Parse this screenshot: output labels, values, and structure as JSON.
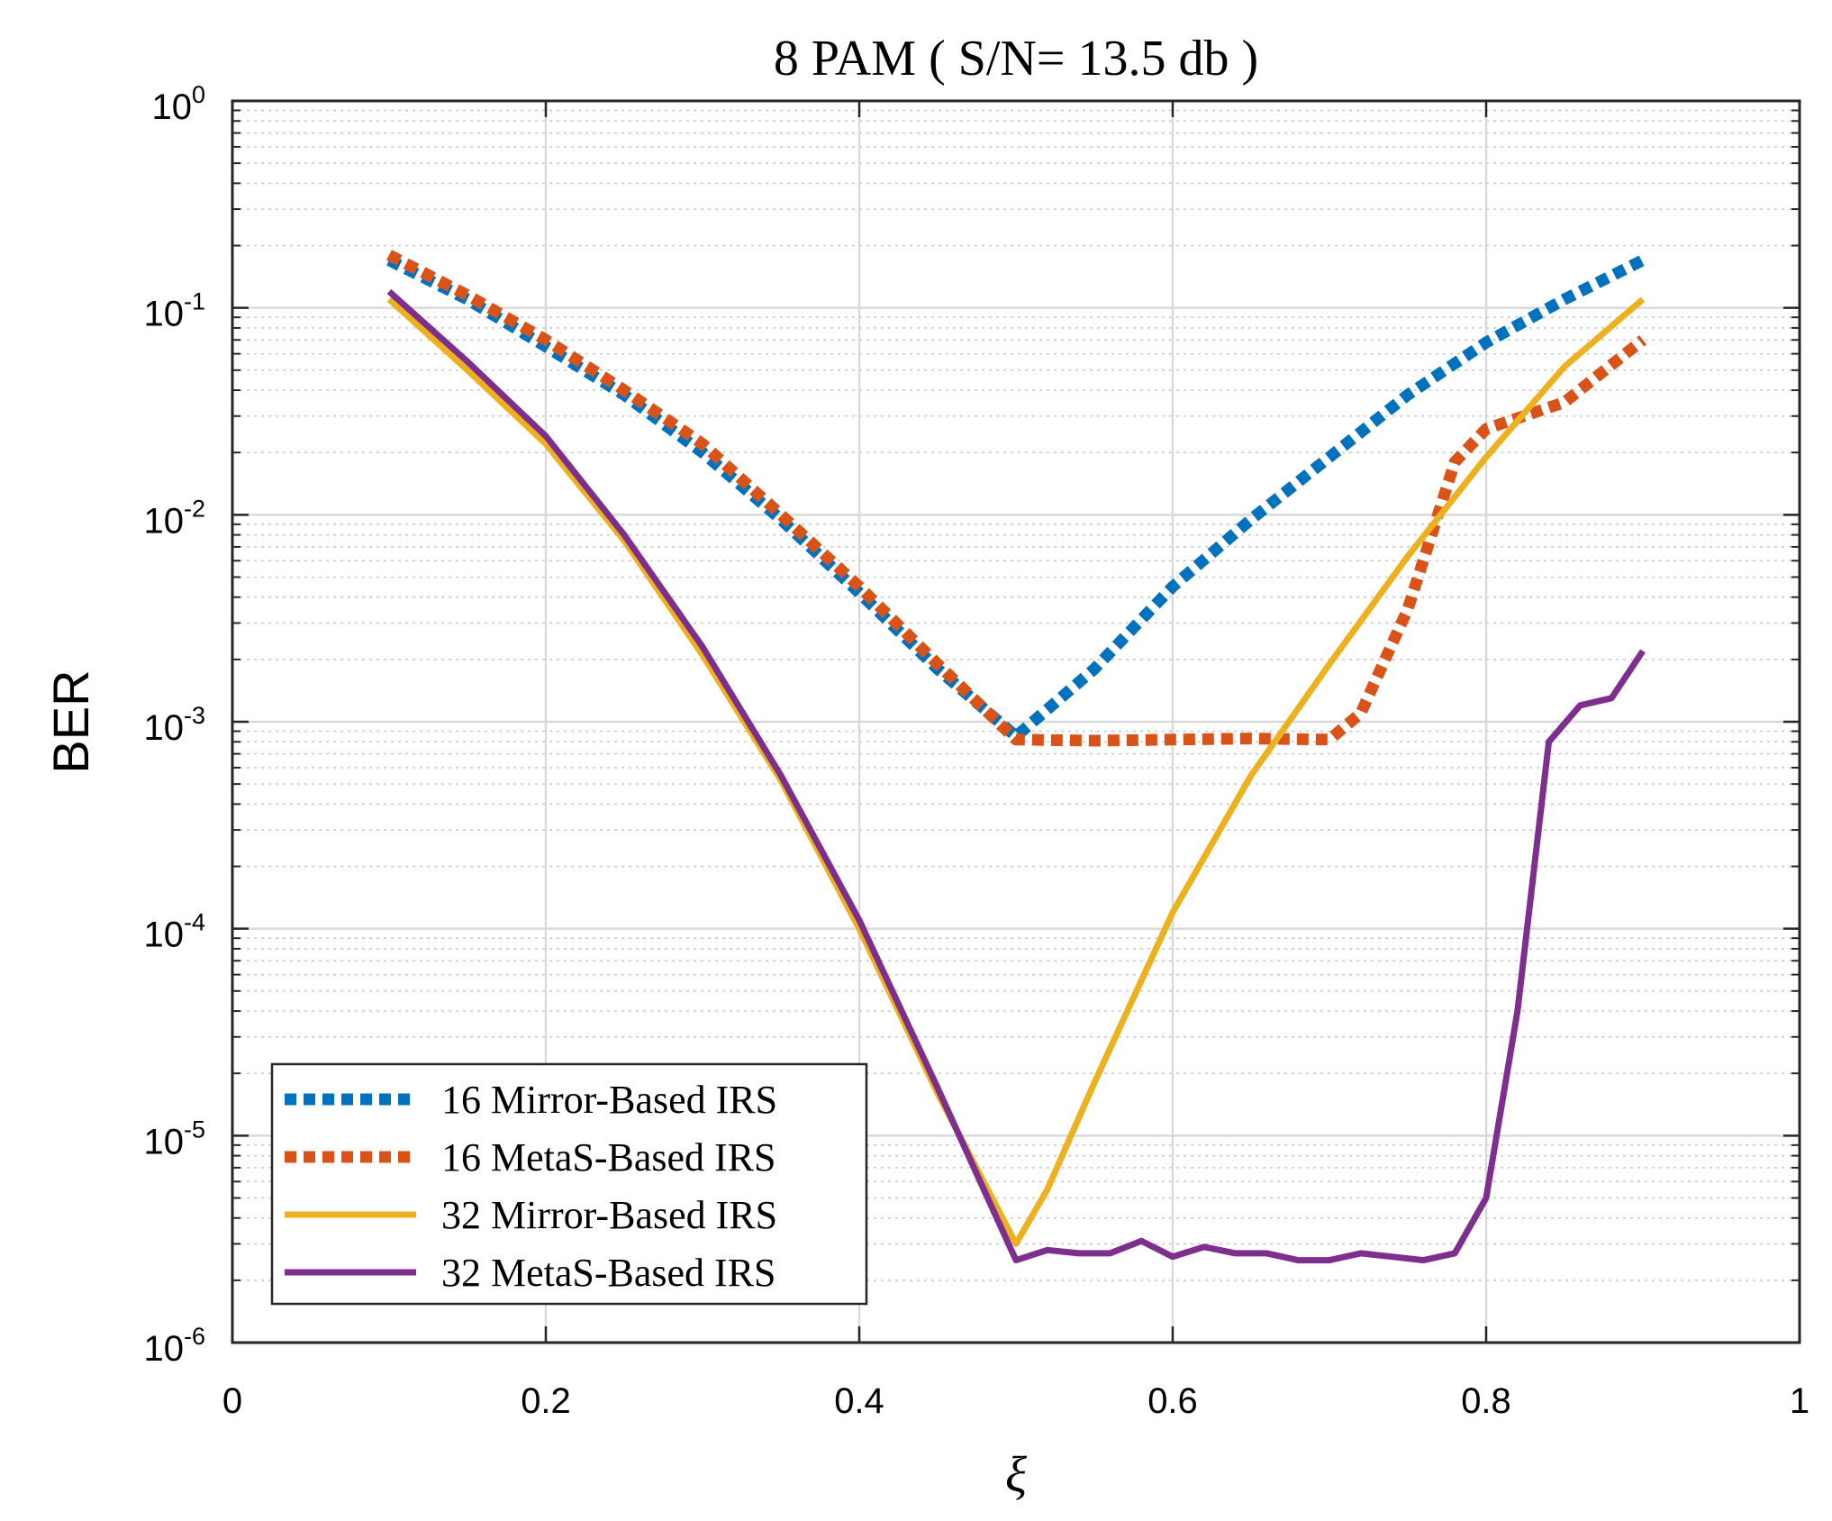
{
  "chart_data": {
    "type": "line",
    "title": "8 PAM  ( S/N= 13.5 db )",
    "xlabel": "ξ",
    "ylabel": "BER",
    "xlim": [
      0,
      1
    ],
    "ylim": [
      1e-06,
      1
    ],
    "yscale": "log",
    "grid": true,
    "legend_position": "bottom-left",
    "x_ticks": [
      "0",
      "0.2",
      "0.4",
      "0.6",
      "0.8",
      "1"
    ],
    "y_ticks": [
      {
        "base": "10",
        "exp": "-6"
      },
      {
        "base": "10",
        "exp": "-5"
      },
      {
        "base": "10",
        "exp": "-4"
      },
      {
        "base": "10",
        "exp": "-3"
      },
      {
        "base": "10",
        "exp": "-2"
      },
      {
        "base": "10",
        "exp": "-1"
      },
      {
        "base": "10",
        "exp": "0"
      }
    ],
    "series": [
      {
        "name": "16 Mirror-Based IRS",
        "color": "#0072BD",
        "style": "dotted",
        "x": [
          0.1,
          0.15,
          0.2,
          0.25,
          0.3,
          0.35,
          0.4,
          0.45,
          0.5,
          0.55,
          0.6,
          0.65,
          0.7,
          0.75,
          0.8,
          0.85,
          0.9
        ],
        "y": [
          0.17,
          0.11,
          0.065,
          0.038,
          0.02,
          0.0095,
          0.0042,
          0.0018,
          0.00085,
          0.0018,
          0.0045,
          0.0095,
          0.019,
          0.038,
          0.068,
          0.11,
          0.17
        ]
      },
      {
        "name": "16 MetaS-Based IRS",
        "color": "#D95319",
        "style": "dotted",
        "x": [
          0.1,
          0.15,
          0.2,
          0.25,
          0.3,
          0.35,
          0.4,
          0.45,
          0.5,
          0.55,
          0.6,
          0.65,
          0.7,
          0.72,
          0.75,
          0.78,
          0.8,
          0.85,
          0.9
        ],
        "y": [
          0.18,
          0.115,
          0.07,
          0.04,
          0.022,
          0.01,
          0.0045,
          0.0019,
          0.00082,
          0.00081,
          0.00082,
          0.00083,
          0.00082,
          0.0011,
          0.0035,
          0.018,
          0.026,
          0.035,
          0.07
        ]
      },
      {
        "name": "32 Mirror-Based IRS",
        "color": "#EDB120",
        "style": "solid",
        "x": [
          0.1,
          0.15,
          0.2,
          0.25,
          0.3,
          0.35,
          0.4,
          0.45,
          0.5,
          0.52,
          0.55,
          0.6,
          0.65,
          0.7,
          0.75,
          0.8,
          0.85,
          0.9
        ],
        "y": [
          0.11,
          0.05,
          0.022,
          0.0075,
          0.0021,
          0.00052,
          0.0001,
          1.6e-05,
          3e-06,
          5.5e-06,
          1.8e-05,
          0.00012,
          0.00055,
          0.0019,
          0.0063,
          0.019,
          0.052,
          0.11
        ]
      },
      {
        "name": "32 MetaS-Based IRS",
        "color": "#7E2F8E",
        "style": "solid",
        "x": [
          0.1,
          0.15,
          0.2,
          0.25,
          0.3,
          0.35,
          0.4,
          0.45,
          0.5,
          0.52,
          0.54,
          0.56,
          0.58,
          0.6,
          0.62,
          0.64,
          0.66,
          0.68,
          0.7,
          0.72,
          0.74,
          0.76,
          0.78,
          0.8,
          0.82,
          0.84,
          0.86,
          0.88,
          0.9
        ],
        "y": [
          0.12,
          0.055,
          0.024,
          0.008,
          0.0023,
          0.00055,
          0.00011,
          1.7e-05,
          2.5e-06,
          2.8e-06,
          2.7e-06,
          2.7e-06,
          3.1e-06,
          2.6e-06,
          2.9e-06,
          2.7e-06,
          2.7e-06,
          2.5e-06,
          2.5e-06,
          2.7e-06,
          2.6e-06,
          2.5e-06,
          2.7e-06,
          5e-06,
          4e-05,
          0.0008,
          0.0012,
          0.0013,
          0.0022
        ]
      }
    ]
  }
}
